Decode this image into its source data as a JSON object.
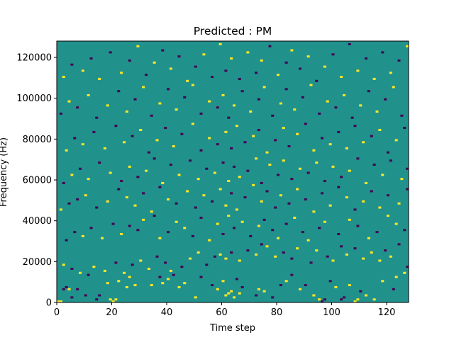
{
  "chart_data": {
    "type": "heatmap",
    "title": "Predicted : PM",
    "xlabel": "Time step",
    "ylabel": "Frequency (Hz)",
    "xlim": [
      0,
      128
    ],
    "ylim": [
      0,
      128000
    ],
    "xticks": [
      0,
      20,
      40,
      60,
      80,
      100,
      120
    ],
    "yticks": [
      0,
      20000,
      40000,
      60000,
      80000,
      100000,
      120000
    ],
    "ytick_labels": [
      "0",
      "20000",
      "40000",
      "60000",
      "80000",
      "100000",
      "120000"
    ],
    "grid": false,
    "colormap": "viridis",
    "value_range": [
      -1,
      1
    ],
    "colors": {
      "background": "#21918c",
      "high": "#fde725",
      "low": "#440154"
    },
    "n_time_steps": 128,
    "n_freq_bins": 128,
    "freq_bin_width_hz": 1000,
    "nonzero_cells": [
      [
        0,
        0,
        1
      ],
      [
        1,
        0,
        1
      ],
      [
        19,
        1,
        1
      ],
      [
        20,
        0,
        1
      ],
      [
        21,
        1,
        1
      ],
      [
        61,
        3,
        1
      ],
      [
        62,
        4,
        1
      ],
      [
        63,
        5,
        1
      ],
      [
        96,
        0,
        -1
      ],
      [
        97,
        1,
        -1
      ],
      [
        108,
        0,
        1
      ],
      [
        109,
        1,
        1
      ],
      [
        103,
        1,
        -1
      ],
      [
        2,
        6,
        -1
      ],
      [
        3,
        7,
        -1
      ],
      [
        5,
        2,
        -1
      ],
      [
        4,
        6,
        1
      ],
      [
        7,
        6,
        -1
      ],
      [
        10,
        3,
        -1
      ],
      [
        14,
        1,
        -1
      ],
      [
        15,
        3,
        -1
      ],
      [
        18,
        9,
        1
      ],
      [
        22,
        10,
        1
      ],
      [
        25,
        7,
        1
      ],
      [
        26,
        12,
        1
      ],
      [
        28,
        8,
        1
      ],
      [
        34,
        8,
        1
      ],
      [
        37,
        12,
        -1
      ],
      [
        38,
        9,
        1
      ],
      [
        40,
        11,
        1
      ],
      [
        42,
        13,
        -1
      ],
      [
        44,
        7,
        1
      ],
      [
        46,
        9,
        1
      ],
      [
        50,
        2,
        1
      ],
      [
        52,
        12,
        -1
      ],
      [
        56,
        8,
        -1
      ],
      [
        58,
        6,
        1
      ],
      [
        60,
        10,
        1
      ],
      [
        64,
        2,
        1
      ],
      [
        65,
        11,
        -1
      ],
      [
        66,
        4,
        1
      ],
      [
        67,
        7,
        -1
      ],
      [
        72,
        3,
        -1
      ],
      [
        73,
        6,
        1
      ],
      [
        75,
        5,
        1
      ],
      [
        78,
        2,
        -1
      ],
      [
        81,
        8,
        -1
      ],
      [
        83,
        10,
        1
      ],
      [
        85,
        13,
        -1
      ],
      [
        88,
        6,
        1
      ],
      [
        90,
        8,
        -1
      ],
      [
        93,
        3,
        1
      ],
      [
        95,
        1,
        1
      ],
      [
        99,
        10,
        -1
      ],
      [
        101,
        7,
        1
      ],
      [
        104,
        2,
        -1
      ],
      [
        106,
        8,
        1
      ],
      [
        110,
        5,
        -1
      ],
      [
        112,
        3,
        1
      ],
      [
        115,
        1,
        1
      ],
      [
        118,
        10,
        1
      ],
      [
        122,
        6,
        -1
      ],
      [
        123,
        12,
        1
      ],
      [
        126,
        14,
        1
      ],
      [
        127,
        17,
        -1
      ],
      [
        2,
        18,
        1
      ],
      [
        5,
        16,
        -1
      ],
      [
        8,
        14,
        1
      ],
      [
        11,
        13,
        -1
      ],
      [
        13,
        17,
        1
      ],
      [
        17,
        15,
        1
      ],
      [
        21,
        19,
        -1
      ],
      [
        24,
        14,
        1
      ],
      [
        27,
        18,
        -1
      ],
      [
        30,
        20,
        1
      ],
      [
        33,
        16,
        1
      ],
      [
        36,
        22,
        -1
      ],
      [
        39,
        19,
        -1
      ],
      [
        41,
        15,
        1
      ],
      [
        45,
        17,
        -1
      ],
      [
        48,
        21,
        1
      ],
      [
        51,
        24,
        1
      ],
      [
        54,
        18,
        -1
      ],
      [
        57,
        22,
        -1
      ],
      [
        59,
        23,
        1
      ],
      [
        61,
        21,
        1
      ],
      [
        63,
        24,
        -1
      ],
      [
        66,
        20,
        1
      ],
      [
        69,
        25,
        -1
      ],
      [
        72,
        23,
        1
      ],
      [
        74,
        28,
        -1
      ],
      [
        76,
        27,
        1
      ],
      [
        79,
        22,
        1
      ],
      [
        82,
        24,
        -1
      ],
      [
        85,
        21,
        -1
      ],
      [
        87,
        26,
        1
      ],
      [
        92,
        19,
        -1
      ],
      [
        94,
        25,
        1
      ],
      [
        98,
        22,
        -1
      ],
      [
        100,
        20,
        1
      ],
      [
        103,
        27,
        -1
      ],
      [
        105,
        23,
        1
      ],
      [
        108,
        26,
        -1
      ],
      [
        111,
        21,
        1
      ],
      [
        114,
        24,
        1
      ],
      [
        117,
        20,
        1
      ],
      [
        119,
        25,
        -1
      ],
      [
        121,
        22,
        1
      ],
      [
        124,
        28,
        -1
      ],
      [
        3,
        30,
        -1
      ],
      [
        6,
        34,
        -1
      ],
      [
        9,
        32,
        1
      ],
      [
        12,
        36,
        -1
      ],
      [
        16,
        31,
        1
      ],
      [
        20,
        38,
        -1
      ],
      [
        23,
        33,
        1
      ],
      [
        26,
        37,
        -1
      ],
      [
        29,
        35,
        -1
      ],
      [
        31,
        40,
        1
      ],
      [
        35,
        42,
        -1
      ],
      [
        37,
        31,
        1
      ],
      [
        40,
        34,
        -1
      ],
      [
        43,
        39,
        1
      ],
      [
        46,
        36,
        1
      ],
      [
        49,
        32,
        -1
      ],
      [
        52,
        41,
        -1
      ],
      [
        55,
        30,
        1
      ],
      [
        58,
        38,
        1
      ],
      [
        60,
        33,
        -1
      ],
      [
        62,
        42,
        1
      ],
      [
        64,
        36,
        -1
      ],
      [
        67,
        39,
        1
      ],
      [
        70,
        32,
        -1
      ],
      [
        73,
        37,
        1
      ],
      [
        75,
        40,
        -1
      ],
      [
        78,
        35,
        -1
      ],
      [
        80,
        31,
        1
      ],
      [
        83,
        38,
        -1
      ],
      [
        86,
        41,
        1
      ],
      [
        89,
        34,
        -1
      ],
      [
        91,
        30,
        1
      ],
      [
        95,
        36,
        -1
      ],
      [
        97,
        39,
        1
      ],
      [
        102,
        33,
        -1
      ],
      [
        106,
        40,
        1
      ],
      [
        109,
        37,
        -1
      ],
      [
        113,
        31,
        1
      ],
      [
        116,
        34,
        -1
      ],
      [
        120,
        42,
        1
      ],
      [
        123,
        38,
        1
      ],
      [
        126,
        35,
        -1
      ],
      [
        1,
        45,
        1
      ],
      [
        4,
        48,
        -1
      ],
      [
        7,
        50,
        -1
      ],
      [
        10,
        52,
        1
      ],
      [
        14,
        46,
        -1
      ],
      [
        18,
        49,
        1
      ],
      [
        22,
        55,
        -1
      ],
      [
        25,
        51,
        1
      ],
      [
        28,
        47,
        1
      ],
      [
        31,
        53,
        -1
      ],
      [
        34,
        44,
        1
      ],
      [
        37,
        56,
        -1
      ],
      [
        40,
        50,
        1
      ],
      [
        43,
        48,
        -1
      ],
      [
        47,
        54,
        1
      ],
      [
        50,
        46,
        -1
      ],
      [
        53,
        52,
        1
      ],
      [
        56,
        49,
        -1
      ],
      [
        59,
        55,
        1
      ],
      [
        61,
        47,
        1
      ],
      [
        63,
        53,
        -1
      ],
      [
        65,
        45,
        1
      ],
      [
        68,
        51,
        -1
      ],
      [
        71,
        57,
        1
      ],
      [
        74,
        49,
        1
      ],
      [
        76,
        54,
        -1
      ],
      [
        79,
        46,
        -1
      ],
      [
        81,
        52,
        1
      ],
      [
        84,
        48,
        -1
      ],
      [
        87,
        55,
        1
      ],
      [
        90,
        50,
        -1
      ],
      [
        93,
        44,
        1
      ],
      [
        96,
        53,
        -1
      ],
      [
        99,
        47,
        1
      ],
      [
        102,
        56,
        -1
      ],
      [
        105,
        51,
        1
      ],
      [
        108,
        45,
        -1
      ],
      [
        111,
        49,
        1
      ],
      [
        114,
        54,
        -1
      ],
      [
        117,
        46,
        1
      ],
      [
        120,
        52,
        -1
      ],
      [
        124,
        48,
        1
      ],
      [
        127,
        55,
        -1
      ],
      [
        2,
        58,
        -1
      ],
      [
        5,
        62,
        1
      ],
      [
        8,
        65,
        -1
      ],
      [
        11,
        60,
        1
      ],
      [
        15,
        68,
        -1
      ],
      [
        19,
        63,
        1
      ],
      [
        23,
        59,
        -1
      ],
      [
        26,
        66,
        1
      ],
      [
        29,
        61,
        -1
      ],
      [
        32,
        64,
        1
      ],
      [
        35,
        70,
        -1
      ],
      [
        38,
        58,
        1
      ],
      [
        41,
        67,
        -1
      ],
      [
        44,
        62,
        1
      ],
      [
        48,
        69,
        -1
      ],
      [
        51,
        60,
        1
      ],
      [
        54,
        65,
        -1
      ],
      [
        57,
        63,
        1
      ],
      [
        60,
        68,
        -1
      ],
      [
        62,
        59,
        1
      ],
      [
        64,
        66,
        -1
      ],
      [
        66,
        61,
        1
      ],
      [
        69,
        64,
        -1
      ],
      [
        72,
        70,
        1
      ],
      [
        74,
        58,
        -1
      ],
      [
        77,
        67,
        1
      ],
      [
        80,
        62,
        -1
      ],
      [
        82,
        69,
        1
      ],
      [
        85,
        60,
        -1
      ],
      [
        88,
        65,
        1
      ],
      [
        91,
        63,
        -1
      ],
      [
        94,
        68,
        1
      ],
      [
        97,
        59,
        -1
      ],
      [
        100,
        66,
        1
      ],
      [
        103,
        61,
        -1
      ],
      [
        106,
        64,
        1
      ],
      [
        109,
        70,
        -1
      ],
      [
        112,
        58,
        1
      ],
      [
        115,
        67,
        -1
      ],
      [
        118,
        62,
        1
      ],
      [
        121,
        69,
        -1
      ],
      [
        125,
        60,
        1
      ],
      [
        127,
        65,
        -1
      ],
      [
        3,
        74,
        1
      ],
      [
        6,
        80,
        -1
      ],
      [
        9,
        77,
        1
      ],
      [
        13,
        83,
        -1
      ],
      [
        17,
        75,
        1
      ],
      [
        21,
        86,
        -1
      ],
      [
        24,
        78,
        1
      ],
      [
        27,
        81,
        -1
      ],
      [
        30,
        84,
        1
      ],
      [
        33,
        73,
        -1
      ],
      [
        36,
        79,
        1
      ],
      [
        39,
        85,
        -1
      ],
      [
        42,
        76,
        1
      ],
      [
        45,
        82,
        -1
      ],
      [
        49,
        87,
        1
      ],
      [
        52,
        74,
        -1
      ],
      [
        55,
        80,
        1
      ],
      [
        58,
        77,
        -1
      ],
      [
        61,
        83,
        1
      ],
      [
        63,
        75,
        -1
      ],
      [
        65,
        86,
        1
      ],
      [
        68,
        78,
        -1
      ],
      [
        71,
        81,
        1
      ],
      [
        73,
        84,
        -1
      ],
      [
        76,
        73,
        1
      ],
      [
        79,
        79,
        -1
      ],
      [
        82,
        85,
        1
      ],
      [
        84,
        76,
        -1
      ],
      [
        87,
        82,
        1
      ],
      [
        90,
        87,
        -1
      ],
      [
        93,
        74,
        1
      ],
      [
        96,
        80,
        -1
      ],
      [
        99,
        77,
        1
      ],
      [
        102,
        83,
        -1
      ],
      [
        105,
        75,
        1
      ],
      [
        108,
        86,
        -1
      ],
      [
        111,
        78,
        1
      ],
      [
        114,
        81,
        -1
      ],
      [
        117,
        84,
        1
      ],
      [
        120,
        73,
        -1
      ],
      [
        123,
        79,
        1
      ],
      [
        126,
        85,
        -1
      ],
      [
        1,
        92,
        -1
      ],
      [
        4,
        98,
        1
      ],
      [
        7,
        95,
        -1
      ],
      [
        11,
        101,
        1
      ],
      [
        14,
        90,
        -1
      ],
      [
        18,
        96,
        1
      ],
      [
        22,
        103,
        -1
      ],
      [
        25,
        93,
        1
      ],
      [
        28,
        99,
        -1
      ],
      [
        31,
        105,
        1
      ],
      [
        34,
        91,
        -1
      ],
      [
        37,
        97,
        1
      ],
      [
        40,
        104,
        -1
      ],
      [
        43,
        94,
        1
      ],
      [
        46,
        100,
        -1
      ],
      [
        49,
        106,
        1
      ],
      [
        52,
        92,
        -1
      ],
      [
        55,
        98,
        1
      ],
      [
        58,
        95,
        -1
      ],
      [
        60,
        101,
        1
      ],
      [
        62,
        90,
        -1
      ],
      [
        64,
        96,
        1
      ],
      [
        67,
        103,
        -1
      ],
      [
        70,
        93,
        1
      ],
      [
        73,
        99,
        -1
      ],
      [
        75,
        105,
        1
      ],
      [
        78,
        91,
        -1
      ],
      [
        81,
        97,
        1
      ],
      [
        83,
        104,
        -1
      ],
      [
        86,
        94,
        1
      ],
      [
        89,
        100,
        -1
      ],
      [
        92,
        106,
        1
      ],
      [
        95,
        92,
        -1
      ],
      [
        98,
        98,
        1
      ],
      [
        101,
        95,
        -1
      ],
      [
        104,
        101,
        1
      ],
      [
        107,
        90,
        -1
      ],
      [
        110,
        96,
        1
      ],
      [
        113,
        103,
        -1
      ],
      [
        116,
        93,
        1
      ],
      [
        119,
        99,
        -1
      ],
      [
        122,
        105,
        1
      ],
      [
        125,
        91,
        -1
      ],
      [
        2,
        110,
        1
      ],
      [
        5,
        116,
        -1
      ],
      [
        9,
        113,
        1
      ],
      [
        12,
        119,
        -1
      ],
      [
        15,
        109,
        1
      ],
      [
        19,
        122,
        -1
      ],
      [
        23,
        112,
        1
      ],
      [
        26,
        118,
        -1
      ],
      [
        29,
        125,
        1
      ],
      [
        32,
        111,
        -1
      ],
      [
        35,
        117,
        1
      ],
      [
        38,
        123,
        -1
      ],
      [
        41,
        114,
        1
      ],
      [
        44,
        120,
        -1
      ],
      [
        47,
        108,
        1
      ],
      [
        50,
        115,
        -1
      ],
      [
        53,
        121,
        1
      ],
      [
        56,
        110,
        -1
      ],
      [
        59,
        126,
        1
      ],
      [
        61,
        113,
        -1
      ],
      [
        63,
        119,
        1
      ],
      [
        66,
        109,
        -1
      ],
      [
        69,
        122,
        1
      ],
      [
        72,
        112,
        -1
      ],
      [
        74,
        118,
        1
      ],
      [
        77,
        125,
        -1
      ],
      [
        80,
        111,
        1
      ],
      [
        83,
        117,
        -1
      ],
      [
        85,
        123,
        1
      ],
      [
        88,
        114,
        -1
      ],
      [
        91,
        120,
        1
      ],
      [
        94,
        108,
        -1
      ],
      [
        97,
        115,
        1
      ],
      [
        100,
        121,
        -1
      ],
      [
        103,
        110,
        1
      ],
      [
        106,
        126,
        -1
      ],
      [
        109,
        113,
        1
      ],
      [
        112,
        119,
        -1
      ],
      [
        115,
        109,
        1
      ],
      [
        118,
        122,
        -1
      ],
      [
        121,
        112,
        1
      ],
      [
        124,
        118,
        -1
      ],
      [
        127,
        125,
        1
      ]
    ]
  }
}
